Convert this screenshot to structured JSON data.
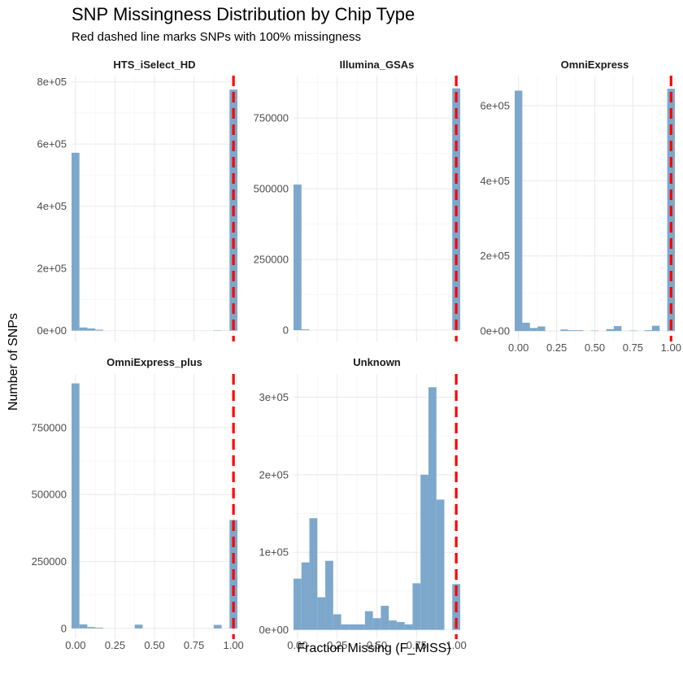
{
  "title": "SNP Missingness Distribution by Chip Type",
  "subtitle": "Red dashed line marks SNPs with 100% missingness",
  "colors": {
    "bar": "#6f9ec7",
    "threshold": "#ff0000",
    "grid": "#ebebeb"
  },
  "chart_data": {
    "type": "bar",
    "subtype": "faceted-histogram",
    "xlabel": "Fraction Missing (F_MISS)",
    "ylabel": "Number of SNPs",
    "xlim": [
      -0.025,
      1.025
    ],
    "x_ticks": [
      "0.00",
      "0.25",
      "0.50",
      "0.75",
      "1.00"
    ],
    "bin_width": 0.05,
    "bin_centers": [
      0.0,
      0.05,
      0.1,
      0.15,
      0.2,
      0.25,
      0.3,
      0.35,
      0.4,
      0.45,
      0.5,
      0.55,
      0.6,
      0.65,
      0.7,
      0.75,
      0.8,
      0.85,
      0.9,
      0.95,
      1.0
    ],
    "threshold_x": 1.0,
    "grid": true,
    "facets": [
      {
        "name": "HTS_iSelect_HD",
        "ylim": [
          -35000,
          820000
        ],
        "y_ticks": [
          0,
          200000,
          400000,
          600000,
          800000
        ],
        "y_tick_labels": [
          "0e+00",
          "2e+05",
          "4e+05",
          "6e+05",
          "8e+05"
        ],
        "values": [
          572000,
          10000,
          7000,
          3000,
          0,
          0,
          0,
          0,
          0,
          0,
          0,
          0,
          0,
          0,
          0,
          0,
          0,
          0,
          1000,
          0,
          775000
        ]
      },
      {
        "name": "Illumina_GSAs",
        "ylim": [
          -40000,
          900000
        ],
        "y_ticks": [
          0,
          250000,
          500000,
          750000
        ],
        "y_tick_labels": [
          "0",
          "250000",
          "500000",
          "750000"
        ],
        "values": [
          515000,
          3000,
          0,
          0,
          0,
          0,
          0,
          0,
          0,
          0,
          0,
          0,
          0,
          0,
          0,
          0,
          0,
          0,
          0,
          0,
          855000
        ]
      },
      {
        "name": "OmniExpress",
        "ylim": [
          -28000,
          680000
        ],
        "y_ticks": [
          0,
          200000,
          400000,
          600000
        ],
        "y_tick_labels": [
          "0e+00",
          "2e+05",
          "4e+05",
          "6e+05"
        ],
        "values": [
          640000,
          22000,
          8000,
          12000,
          0,
          0,
          4000,
          2000,
          2000,
          0,
          1000,
          0,
          5000,
          13000,
          0,
          1000,
          0,
          2000,
          14000,
          0,
          645000
        ]
      },
      {
        "name": "OmniExpress_plus",
        "ylim": [
          -40000,
          950000
        ],
        "y_ticks": [
          0,
          250000,
          500000,
          750000
        ],
        "y_tick_labels": [
          "0",
          "250000",
          "500000",
          "750000"
        ],
        "values": [
          915000,
          15000,
          5000,
          3000,
          0,
          0,
          0,
          0,
          14000,
          0,
          0,
          0,
          0,
          0,
          0,
          0,
          0,
          0,
          13000,
          0,
          405000
        ]
      },
      {
        "name": "Unknown",
        "ylim": [
          -12000,
          330000
        ],
        "y_ticks": [
          0,
          100000,
          200000,
          300000
        ],
        "y_tick_labels": [
          "0e+00",
          "1e+05",
          "2e+05",
          "3e+05"
        ],
        "values": [
          66000,
          87000,
          144000,
          42000,
          89000,
          20000,
          7000,
          7000,
          7000,
          24000,
          15000,
          31000,
          12000,
          10000,
          7000,
          60000,
          200000,
          313000,
          168000,
          0,
          59000
        ]
      }
    ]
  }
}
